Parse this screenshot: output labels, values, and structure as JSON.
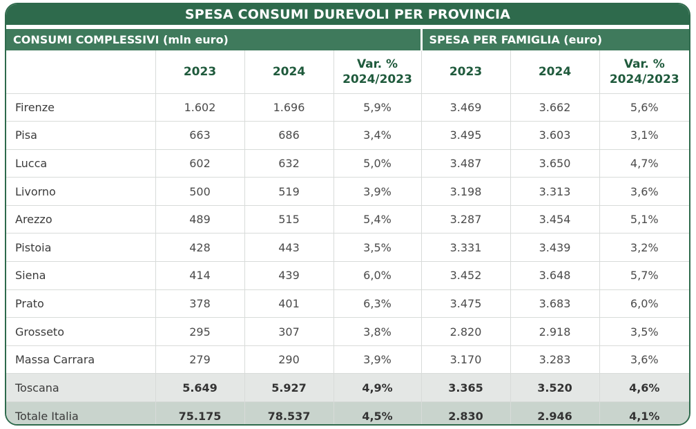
{
  "title": "SPESA CONSUMI DUREVOLI PER PROVINCIA",
  "groups": {
    "left": "CONSUMI COMPLESSIVI (mln euro)",
    "right": "SPESA PER FAMIGLIA (euro)"
  },
  "columns": {
    "y2023": "2023",
    "y2024": "2024",
    "var_line1": "Var. %",
    "var_line2": "2024/2023"
  },
  "chart_data": {
    "type": "table",
    "title": "SPESA CONSUMI DUREVOLI PER PROVINCIA",
    "column_groups": [
      "CONSUMI COMPLESSIVI (mln euro)",
      "SPESA PER FAMIGLIA (euro)"
    ],
    "columns": [
      "2023",
      "2024",
      "Var. % 2024/2023",
      "2023",
      "2024",
      "Var. % 2024/2023"
    ],
    "rows": [
      {
        "name": "Firenze",
        "values": [
          "1.602",
          "1.696",
          "5,9%",
          "3.469",
          "3.662",
          "5,6%"
        ]
      },
      {
        "name": "Pisa",
        "values": [
          "663",
          "686",
          "3,4%",
          "3.495",
          "3.603",
          "3,1%"
        ]
      },
      {
        "name": "Lucca",
        "values": [
          "602",
          "632",
          "5,0%",
          "3.487",
          "3.650",
          "4,7%"
        ]
      },
      {
        "name": "Livorno",
        "values": [
          "500",
          "519",
          "3,9%",
          "3.198",
          "3.313",
          "3,6%"
        ]
      },
      {
        "name": "Arezzo",
        "values": [
          "489",
          "515",
          "5,4%",
          "3.287",
          "3.454",
          "5,1%"
        ]
      },
      {
        "name": "Pistoia",
        "values": [
          "428",
          "443",
          "3,5%",
          "3.331",
          "3.439",
          "3,2%"
        ]
      },
      {
        "name": "Siena",
        "values": [
          "414",
          "439",
          "6,0%",
          "3.452",
          "3.648",
          "5,7%"
        ]
      },
      {
        "name": "Prato",
        "values": [
          "378",
          "401",
          "6,3%",
          "3.475",
          "3.683",
          "6,0%"
        ]
      },
      {
        "name": "Grosseto",
        "values": [
          "295",
          "307",
          "3,8%",
          "2.820",
          "2.918",
          "3,5%"
        ]
      },
      {
        "name": "Massa Carrara",
        "values": [
          "279",
          "290",
          "3,9%",
          "3.170",
          "3.283",
          "3,6%"
        ]
      }
    ],
    "totals": [
      {
        "name": "Toscana",
        "values": [
          "5.649",
          "5.927",
          "4,9%",
          "3.365",
          "3.520",
          "4,6%"
        ]
      },
      {
        "name": "Totale Italia",
        "values": [
          "75.175",
          "78.537",
          "4,5%",
          "2.830",
          "2.946",
          "4,1%"
        ]
      }
    ]
  },
  "colors": {
    "header_dark": "#2e6a4c",
    "header_group": "#3f7a5c",
    "header_text": "#1f5a3c",
    "toscana_bg": "#e4e7e5",
    "italia_bg": "#c9d4cd"
  }
}
